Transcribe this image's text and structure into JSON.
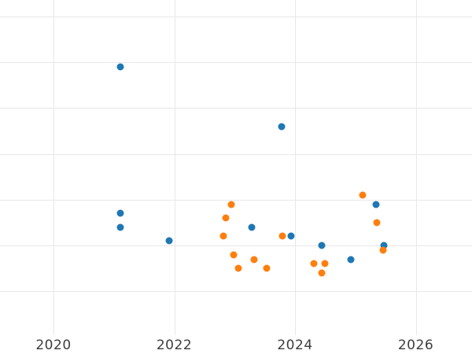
{
  "chart_data": {
    "type": "scatter",
    "title": "",
    "xlabel": "",
    "ylabel": "",
    "x_tick_labels": [
      "2020",
      "2022",
      "2024",
      "2026"
    ],
    "x_tick_years": [
      2020,
      2022,
      2024,
      2026
    ],
    "x_range_visible": [
      2019.1,
      2026.95
    ],
    "y_gridline_units": [
      0,
      1,
      2,
      3,
      4,
      5,
      6
    ],
    "y_axis_labels_visible": false,
    "grid_on": true,
    "legend_visible": false,
    "colors": {
      "background": "#ffffff",
      "gridline": "#e8e8e8",
      "tick_label": "#3d3d3d",
      "series_blue": "#1f77b4",
      "series_orange": "#ff7f0e"
    },
    "marker_diameter_px": 9,
    "series": [
      {
        "name": "series-blue",
        "color": "#1f77b4",
        "points": [
          {
            "x": 2021.11,
            "y": 4.9
          },
          {
            "x": 2023.78,
            "y": 3.6
          },
          {
            "x": 2021.11,
            "y": 1.7
          },
          {
            "x": 2021.11,
            "y": 1.4
          },
          {
            "x": 2021.92,
            "y": 1.1
          },
          {
            "x": 2023.28,
            "y": 1.4
          },
          {
            "x": 2023.93,
            "y": 1.2
          },
          {
            "x": 2024.44,
            "y": 1.0
          },
          {
            "x": 2024.93,
            "y": 0.7
          },
          {
            "x": 2025.34,
            "y": 1.9
          },
          {
            "x": 2025.47,
            "y": 1.0
          }
        ]
      },
      {
        "name": "series-orange",
        "color": "#ff7f0e",
        "points": [
          {
            "x": 2022.81,
            "y": 1.2
          },
          {
            "x": 2022.85,
            "y": 1.6
          },
          {
            "x": 2022.95,
            "y": 1.9
          },
          {
            "x": 2022.98,
            "y": 0.8
          },
          {
            "x": 2023.06,
            "y": 0.5
          },
          {
            "x": 2023.32,
            "y": 0.7
          },
          {
            "x": 2023.53,
            "y": 0.5
          },
          {
            "x": 2023.79,
            "y": 1.2
          },
          {
            "x": 2024.31,
            "y": 0.6
          },
          {
            "x": 2024.44,
            "y": 0.4
          },
          {
            "x": 2024.49,
            "y": 0.6
          },
          {
            "x": 2025.12,
            "y": 2.1
          },
          {
            "x": 2025.36,
            "y": 1.5
          },
          {
            "x": 2025.46,
            "y": 0.9
          }
        ]
      }
    ]
  }
}
